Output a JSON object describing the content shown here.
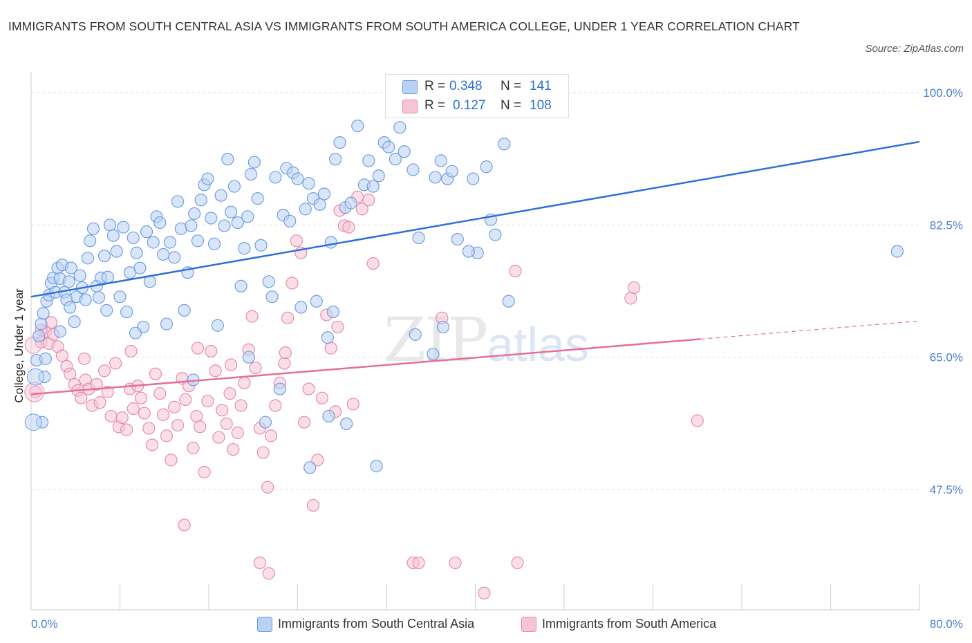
{
  "title": "IMMIGRANTS FROM SOUTH CENTRAL ASIA VS IMMIGRANTS FROM SOUTH AMERICA COLLEGE, UNDER 1 YEAR CORRELATION CHART",
  "source": "Source: ZipAtlas.com",
  "watermark": {
    "zip": "ZIP",
    "atlas": "atlas"
  },
  "stats": {
    "blue": {
      "r_label": "R =",
      "r": "0.348",
      "n_label": "N =",
      "n": "141"
    },
    "pink": {
      "r_label": "R =",
      "r": "0.127",
      "n_label": "N =",
      "n": "108"
    }
  },
  "legend": {
    "blue": "Immigrants from South Central Asia",
    "pink": "Immigrants from South America"
  },
  "colors": {
    "blue_fill": "#b9d1f5",
    "blue_stroke": "#6f9ee2",
    "blue_line": "#2f6fd6",
    "pink_fill": "#f6c4d5",
    "pink_stroke": "#e98aaa",
    "pink_line": "#e46f99",
    "grid": "#dddddd",
    "axis_label": "#4a7fd4"
  },
  "chart_data": {
    "type": "scatter",
    "title": "IMMIGRANTS FROM SOUTH CENTRAL ASIA VS IMMIGRANTS FROM SOUTH AMERICA COLLEGE, UNDER 1 YEAR CORRELATION CHART",
    "xlabel": "",
    "ylabel": "College, Under 1 year",
    "xlim": [
      0,
      80
    ],
    "ylim": [
      32,
      100.0
    ],
    "x_tick_labels": [
      "0.0%",
      "80.0%"
    ],
    "y_ticks": [
      47.5,
      65.0,
      82.5,
      100.0
    ],
    "y_tick_labels": [
      "47.5%",
      "65.0%",
      "82.5%",
      "100.0%"
    ],
    "grid": true,
    "legend_position": "bottom",
    "series": [
      {
        "name": "Immigrants from South Central Asia",
        "trend": {
          "x": [
            0,
            80
          ],
          "y": [
            73.0,
            93.5
          ]
        },
        "points": [
          [
            0.5,
            64.6
          ],
          [
            0.7,
            67.8
          ],
          [
            0.9,
            69.4
          ],
          [
            1.1,
            70.8
          ],
          [
            1.4,
            72.4
          ],
          [
            1.6,
            73.2
          ],
          [
            1.8,
            74.8
          ],
          [
            2.0,
            75.5
          ],
          [
            2.2,
            73.6
          ],
          [
            2.4,
            76.8
          ],
          [
            2.6,
            75.4
          ],
          [
            2.8,
            77.2
          ],
          [
            3.0,
            73.6
          ],
          [
            3.2,
            72.6
          ],
          [
            3.4,
            75.0
          ],
          [
            3.6,
            76.8
          ],
          [
            3.9,
            69.7
          ],
          [
            4.1,
            73.0
          ],
          [
            4.4,
            75.8
          ],
          [
            4.6,
            74.2
          ],
          [
            4.9,
            72.6
          ],
          [
            5.1,
            78.1
          ],
          [
            5.3,
            80.4
          ],
          [
            5.6,
            82.0
          ],
          [
            5.9,
            74.4
          ],
          [
            6.1,
            72.9
          ],
          [
            6.3,
            75.5
          ],
          [
            6.6,
            78.4
          ],
          [
            6.9,
            75.6
          ],
          [
            7.1,
            82.5
          ],
          [
            7.4,
            81.1
          ],
          [
            7.7,
            79.0
          ],
          [
            8.0,
            73.0
          ],
          [
            8.3,
            82.2
          ],
          [
            8.6,
            71.0
          ],
          [
            8.9,
            76.2
          ],
          [
            9.2,
            80.8
          ],
          [
            9.5,
            78.8
          ],
          [
            9.8,
            76.8
          ],
          [
            10.1,
            69.0
          ],
          [
            10.4,
            81.6
          ],
          [
            10.7,
            75.0
          ],
          [
            11.0,
            80.2
          ],
          [
            11.3,
            83.6
          ],
          [
            11.6,
            82.8
          ],
          [
            11.9,
            78.6
          ],
          [
            12.2,
            69.4
          ],
          [
            12.5,
            80.2
          ],
          [
            12.9,
            78.2
          ],
          [
            13.2,
            85.6
          ],
          [
            13.5,
            82.0
          ],
          [
            13.8,
            71.2
          ],
          [
            14.1,
            76.2
          ],
          [
            14.4,
            82.4
          ],
          [
            14.7,
            84.0
          ],
          [
            15.0,
            80.4
          ],
          [
            15.3,
            85.8
          ],
          [
            15.6,
            87.8
          ],
          [
            15.9,
            88.6
          ],
          [
            16.2,
            83.4
          ],
          [
            16.5,
            80.0
          ],
          [
            16.8,
            69.2
          ],
          [
            17.1,
            86.4
          ],
          [
            17.4,
            82.4
          ],
          [
            17.7,
            91.2
          ],
          [
            18.0,
            84.2
          ],
          [
            18.3,
            87.6
          ],
          [
            18.6,
            82.8
          ],
          [
            18.9,
            74.4
          ],
          [
            19.2,
            79.4
          ],
          [
            19.5,
            83.6
          ],
          [
            19.8,
            89.2
          ],
          [
            20.1,
            90.8
          ],
          [
            20.4,
            86.0
          ],
          [
            20.7,
            79.8
          ],
          [
            21.1,
            56.4
          ],
          [
            21.4,
            75.0
          ],
          [
            21.7,
            73.0
          ],
          [
            22.0,
            88.8
          ],
          [
            22.4,
            60.8
          ],
          [
            22.7,
            83.8
          ],
          [
            23.0,
            90.0
          ],
          [
            23.3,
            83.0
          ],
          [
            23.6,
            89.4
          ],
          [
            24.0,
            88.6
          ],
          [
            24.3,
            71.6
          ],
          [
            24.7,
            84.6
          ],
          [
            25.0,
            88.0
          ],
          [
            25.4,
            86.0
          ],
          [
            25.7,
            72.4
          ],
          [
            26.0,
            85.2
          ],
          [
            26.4,
            86.6
          ],
          [
            26.7,
            67.6
          ],
          [
            27.0,
            80.2
          ],
          [
            27.4,
            91.2
          ],
          [
            27.8,
            93.4
          ],
          [
            28.3,
            84.8
          ],
          [
            28.8,
            85.4
          ],
          [
            29.4,
            95.6
          ],
          [
            30.0,
            87.8
          ],
          [
            30.4,
            91.0
          ],
          [
            30.8,
            87.6
          ],
          [
            31.3,
            89.0
          ],
          [
            31.8,
            93.4
          ],
          [
            32.2,
            92.8
          ],
          [
            32.8,
            91.2
          ],
          [
            33.2,
            95.4
          ],
          [
            33.6,
            92.2
          ],
          [
            34.4,
            89.8
          ],
          [
            34.9,
            80.8
          ],
          [
            36.4,
            88.8
          ],
          [
            36.9,
            91.0
          ],
          [
            37.5,
            88.6
          ],
          [
            37.9,
            89.6
          ],
          [
            38.4,
            80.6
          ],
          [
            39.8,
            88.6
          ],
          [
            40.2,
            78.8
          ],
          [
            41.0,
            90.2
          ],
          [
            41.4,
            83.2
          ],
          [
            42.6,
            93.2
          ],
          [
            43.0,
            72.4
          ],
          [
            1.0,
            56.4
          ],
          [
            1.2,
            62.4
          ],
          [
            1.3,
            64.8
          ],
          [
            2.6,
            68.4
          ],
          [
            25.1,
            50.4
          ],
          [
            26.8,
            57.2
          ],
          [
            28.4,
            56.2
          ],
          [
            31.1,
            50.6
          ],
          [
            34.6,
            68.0
          ],
          [
            36.2,
            65.4
          ],
          [
            37.1,
            69.0
          ],
          [
            39.4,
            79.0
          ],
          [
            41.8,
            81.2
          ],
          [
            78.0,
            79.0
          ],
          [
            3.5,
            71.6
          ],
          [
            6.8,
            71.2
          ],
          [
            9.4,
            68.2
          ],
          [
            14.6,
            62.0
          ],
          [
            19.6,
            65.0
          ],
          [
            27.2,
            71.0
          ]
        ]
      },
      {
        "name": "Immigrants from South America",
        "trend": {
          "x": [
            0,
            60.3
          ],
          "y": [
            60.1,
            67.4
          ]
        },
        "trend_dashed": {
          "x": [
            60.3,
            80
          ],
          "y": [
            67.4,
            69.8
          ]
        },
        "points": [
          [
            0.4,
            60.4
          ],
          [
            0.9,
            67.0
          ],
          [
            1.3,
            68.4
          ],
          [
            1.6,
            66.8
          ],
          [
            2.0,
            68.0
          ],
          [
            2.4,
            66.4
          ],
          [
            2.8,
            65.2
          ],
          [
            3.2,
            63.8
          ],
          [
            3.5,
            62.8
          ],
          [
            3.9,
            61.4
          ],
          [
            4.2,
            60.6
          ],
          [
            4.5,
            59.6
          ],
          [
            4.9,
            62.0
          ],
          [
            5.2,
            60.8
          ],
          [
            5.5,
            58.6
          ],
          [
            5.9,
            61.4
          ],
          [
            6.2,
            59.0
          ],
          [
            6.6,
            63.2
          ],
          [
            6.9,
            60.4
          ],
          [
            7.2,
            57.2
          ],
          [
            7.6,
            64.2
          ],
          [
            7.9,
            55.8
          ],
          [
            8.2,
            57.0
          ],
          [
            8.6,
            55.4
          ],
          [
            8.9,
            60.8
          ],
          [
            9.2,
            58.2
          ],
          [
            9.6,
            61.2
          ],
          [
            9.9,
            59.6
          ],
          [
            10.2,
            57.6
          ],
          [
            10.6,
            55.6
          ],
          [
            10.9,
            53.4
          ],
          [
            11.2,
            62.8
          ],
          [
            11.6,
            60.2
          ],
          [
            11.9,
            57.4
          ],
          [
            12.2,
            54.6
          ],
          [
            12.6,
            51.4
          ],
          [
            12.9,
            58.4
          ],
          [
            13.2,
            56.0
          ],
          [
            13.6,
            62.2
          ],
          [
            13.9,
            59.4
          ],
          [
            14.2,
            61.2
          ],
          [
            14.6,
            53.0
          ],
          [
            14.9,
            57.2
          ],
          [
            15.2,
            55.8
          ],
          [
            15.6,
            49.8
          ],
          [
            15.9,
            59.2
          ],
          [
            16.2,
            65.8
          ],
          [
            16.6,
            63.2
          ],
          [
            16.9,
            54.4
          ],
          [
            17.2,
            58.0
          ],
          [
            17.6,
            56.2
          ],
          [
            17.9,
            60.2
          ],
          [
            18.2,
            52.8
          ],
          [
            18.6,
            55.0
          ],
          [
            18.9,
            58.6
          ],
          [
            19.2,
            61.6
          ],
          [
            19.6,
            66.0
          ],
          [
            19.9,
            70.4
          ],
          [
            20.2,
            63.6
          ],
          [
            20.6,
            55.6
          ],
          [
            20.9,
            52.4
          ],
          [
            21.3,
            47.8
          ],
          [
            21.6,
            54.6
          ],
          [
            22.0,
            58.6
          ],
          [
            22.4,
            61.6
          ],
          [
            22.8,
            64.2
          ],
          [
            23.1,
            70.2
          ],
          [
            23.5,
            74.8
          ],
          [
            23.9,
            80.4
          ],
          [
            24.3,
            78.8
          ],
          [
            24.6,
            56.4
          ],
          [
            25.0,
            60.8
          ],
          [
            25.4,
            45.4
          ],
          [
            25.8,
            51.4
          ],
          [
            26.2,
            59.6
          ],
          [
            26.6,
            70.6
          ],
          [
            27.0,
            66.2
          ],
          [
            27.4,
            57.8
          ],
          [
            27.8,
            84.4
          ],
          [
            28.2,
            82.4
          ],
          [
            28.6,
            82.2
          ],
          [
            29.0,
            58.8
          ],
          [
            29.4,
            86.2
          ],
          [
            29.8,
            84.6
          ],
          [
            30.4,
            85.8
          ],
          [
            13.8,
            42.8
          ],
          [
            20.6,
            37.8
          ],
          [
            21.4,
            36.4
          ],
          [
            21.8,
            30.6
          ],
          [
            34.4,
            37.8
          ],
          [
            34.9,
            37.8
          ],
          [
            38.2,
            37.8
          ],
          [
            40.8,
            33.8
          ],
          [
            43.8,
            37.8
          ],
          [
            43.6,
            76.4
          ],
          [
            54.0,
            72.8
          ],
          [
            54.3,
            74.2
          ],
          [
            60.0,
            56.6
          ],
          [
            37.0,
            70.2
          ],
          [
            30.8,
            77.4
          ],
          [
            22.9,
            65.6
          ],
          [
            4.8,
            64.8
          ],
          [
            1.8,
            69.6
          ],
          [
            9.0,
            65.8
          ],
          [
            15.0,
            66.2
          ],
          [
            18.0,
            64.0
          ],
          [
            27.6,
            69.0
          ],
          [
            0.9,
            68.6
          ]
        ]
      }
    ]
  }
}
